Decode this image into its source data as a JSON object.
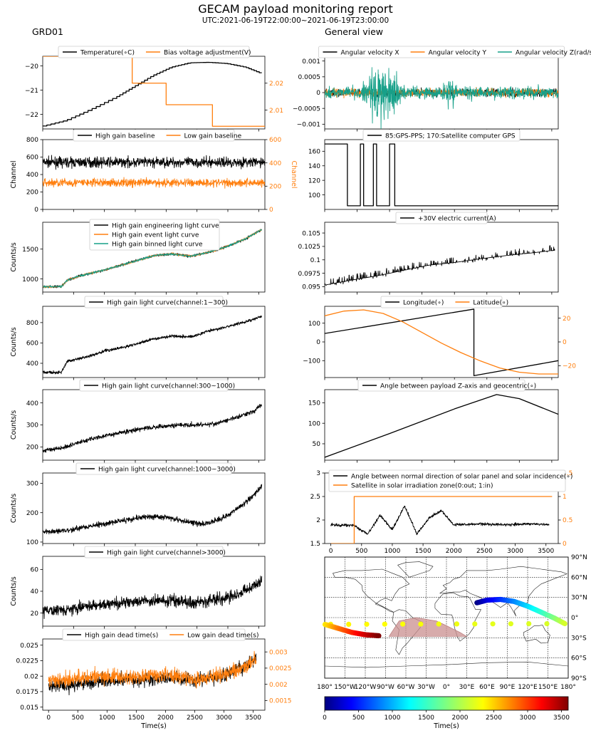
{
  "header": {
    "title": "GECAM payload monitoring report",
    "subtitle": "UTC:2021-06-19T22:00:00~2021-06-19T23:00:00",
    "left_column_title": "GRD01",
    "right_column_title": "General view"
  },
  "colors": {
    "black": "#000000",
    "orange": "#ff7f0e",
    "teal": "#17a089",
    "saa": "#c98f8f"
  },
  "chart_data": [
    {
      "id": "temp",
      "type": "line",
      "xlim": [
        0,
        3600
      ],
      "ylim": [
        -22.6,
        -19.6
      ],
      "y2lim": [
        2.003,
        2.03
      ],
      "yticks": [
        -22,
        -21,
        -20
      ],
      "y2ticks": [
        2.01,
        2.02
      ],
      "legend": "top-center",
      "series": [
        {
          "name": "Temperature(∘C)",
          "color": "#000000",
          "axis": "left",
          "style": "step",
          "x": [
            0,
            400,
            800,
            1200,
            1500,
            1800,
            2100,
            2400,
            2700,
            3000,
            3300,
            3550
          ],
          "y": [
            -22.5,
            -22.25,
            -21.8,
            -21.3,
            -20.85,
            -20.4,
            -20.05,
            -19.87,
            -19.85,
            -19.9,
            -20.05,
            -20.3
          ]
        },
        {
          "name": "Bias voltage adjustment(V)",
          "color": "#ff7f0e",
          "axis": "right",
          "style": "step",
          "x": [
            0,
            1450,
            1450,
            2000,
            2000,
            2750,
            2750,
            3600
          ],
          "y": [
            2.03,
            2.03,
            2.02,
            2.02,
            2.012,
            2.012,
            2.004,
            2.004
          ]
        }
      ]
    },
    {
      "id": "baseline",
      "type": "line",
      "xlim": [
        0,
        3600
      ],
      "ylim": [
        0,
        800
      ],
      "y2lim": [
        0,
        600
      ],
      "yticks": [
        0,
        200,
        400,
        600,
        800
      ],
      "y2ticks": [
        0,
        200,
        400,
        600
      ],
      "ylabel": "Channel",
      "y2label": "Channel",
      "legend": "top-center",
      "series": [
        {
          "name": "High gain baseline",
          "color": "#000000",
          "axis": "left",
          "noise": true,
          "x": [
            0,
            3600
          ],
          "y": [
            540,
            540
          ],
          "amp": 55
        },
        {
          "name": "Low gain baseline",
          "color": "#ff7f0e",
          "axis": "right",
          "noise": true,
          "x": [
            0,
            3600
          ],
          "y": [
            230,
            230
          ],
          "amp": 35
        }
      ]
    },
    {
      "id": "hglc",
      "type": "line",
      "xlim": [
        0,
        3600
      ],
      "ylim": [
        780,
        1950
      ],
      "yticks": [
        1000,
        1500
      ],
      "ylabel": "Counts/s",
      "legend": "top-left",
      "series": [
        {
          "name": "High gain engineering light curve",
          "color": "#000000",
          "noise": true,
          "amp": 20,
          "x": [
            0,
            300,
            400,
            600,
            1000,
            1400,
            1800,
            2100,
            2400,
            2700,
            3000,
            3300,
            3550
          ],
          "y": [
            870,
            870,
            980,
            1050,
            1150,
            1270,
            1390,
            1420,
            1380,
            1450,
            1550,
            1680,
            1830
          ]
        },
        {
          "name": "High gain event light curve",
          "color": "#ff7f0e",
          "noise": true,
          "amp": 18,
          "x": [
            0,
            300,
            400,
            600,
            1000,
            1400,
            1800,
            2100,
            2400,
            2700,
            3000,
            3300,
            3550
          ],
          "y": [
            870,
            870,
            980,
            1050,
            1150,
            1270,
            1390,
            1420,
            1380,
            1450,
            1550,
            1680,
            1830
          ]
        },
        {
          "name": "High gain binned light curve",
          "color": "#17a089",
          "noise": true,
          "amp": 16,
          "x": [
            0,
            300,
            400,
            600,
            1000,
            1400,
            1800,
            2100,
            2400,
            2700,
            3000,
            3300,
            3550
          ],
          "y": [
            870,
            870,
            980,
            1050,
            1150,
            1270,
            1390,
            1420,
            1380,
            1450,
            1550,
            1680,
            1830
          ]
        }
      ]
    },
    {
      "id": "ch1",
      "type": "line",
      "xlim": [
        0,
        3600
      ],
      "ylim": [
        260,
        960
      ],
      "yticks": [
        400,
        600,
        800
      ],
      "ylabel": "Counts/s",
      "legend": "top-center",
      "series": [
        {
          "name": "High gain light curve(channel:1~300)",
          "color": "#000000",
          "noise": true,
          "amp": 14,
          "x": [
            0,
            300,
            400,
            700,
            1000,
            1400,
            1800,
            2100,
            2400,
            2700,
            3000,
            3300,
            3550
          ],
          "y": [
            310,
            310,
            420,
            460,
            520,
            570,
            640,
            670,
            660,
            720,
            760,
            810,
            860
          ]
        }
      ]
    },
    {
      "id": "ch2",
      "type": "line",
      "xlim": [
        0,
        3600
      ],
      "ylim": [
        140,
        460
      ],
      "yticks": [
        200,
        300,
        400
      ],
      "ylabel": "Counts/s",
      "legend": "top-center",
      "series": [
        {
          "name": "High gain light curve(channel:300~1000)",
          "color": "#000000",
          "noise": true,
          "amp": 10,
          "x": [
            0,
            300,
            700,
            1000,
            1400,
            1800,
            2200,
            2500,
            2800,
            3100,
            3400,
            3550
          ],
          "y": [
            185,
            195,
            230,
            250,
            272,
            290,
            300,
            300,
            305,
            330,
            360,
            390
          ]
        }
      ]
    },
    {
      "id": "ch3",
      "type": "line",
      "xlim": [
        0,
        3600
      ],
      "ylim": [
        95,
        335
      ],
      "yticks": [
        100,
        200,
        300
      ],
      "ylabel": "Counts/s",
      "legend": "top-center",
      "series": [
        {
          "name": "High gain light curve(channel:1000~3000)",
          "color": "#000000",
          "noise": true,
          "amp": 9,
          "x": [
            0,
            400,
            800,
            1200,
            1600,
            2000,
            2300,
            2600,
            2900,
            3200,
            3450,
            3550
          ],
          "y": [
            135,
            140,
            155,
            170,
            185,
            185,
            170,
            160,
            180,
            220,
            265,
            290
          ]
        }
      ]
    },
    {
      "id": "ch4",
      "type": "line",
      "xlim": [
        0,
        3600
      ],
      "ylim": [
        8,
        72
      ],
      "yticks": [
        20,
        40,
        60
      ],
      "ylabel": "Counts/s",
      "legend": "top-center",
      "series": [
        {
          "name": "High gain light curve(channel>3000)",
          "color": "#000000",
          "noise": true,
          "amp": 5,
          "x": [
            0,
            500,
            1000,
            1500,
            2000,
            2400,
            2800,
            3200,
            3550
          ],
          "y": [
            22,
            24,
            28,
            30,
            32,
            30,
            32,
            38,
            50
          ]
        }
      ]
    },
    {
      "id": "dead",
      "type": "line",
      "xlim": [
        -100,
        3700
      ],
      "ylim": [
        0.0145,
        0.026
      ],
      "y2lim": [
        0.0012,
        0.0034
      ],
      "yticks": [
        0.015,
        0.0175,
        0.02,
        0.0225,
        0.025
      ],
      "y2ticks": [
        0.0015,
        0.002,
        0.0025,
        0.003
      ],
      "xticks": [
        0,
        500,
        1000,
        1500,
        2000,
        2500,
        3000,
        3500
      ],
      "xlabel": "Time(s)",
      "legend": "top-center",
      "series": [
        {
          "name": "High gain dead time(s)",
          "color": "#000000",
          "axis": "left",
          "noise": true,
          "amp": 0.0011,
          "x": [
            0,
            500,
            1000,
            1500,
            2000,
            2500,
            3000,
            3300,
            3550
          ],
          "y": [
            0.0182,
            0.0188,
            0.0193,
            0.0195,
            0.0197,
            0.0193,
            0.0202,
            0.0212,
            0.0228
          ]
        },
        {
          "name": "Low gain dead time(s)",
          "color": "#ff7f0e",
          "axis": "right",
          "noise": true,
          "amp": 0.00022,
          "x": [
            0,
            500,
            1000,
            1500,
            2000,
            2500,
            3000,
            3300,
            3550
          ],
          "y": [
            0.0021,
            0.0022,
            0.00225,
            0.0022,
            0.0023,
            0.00215,
            0.0023,
            0.0025,
            0.0028
          ]
        }
      ]
    },
    {
      "id": "angvel",
      "type": "line",
      "xlim": [
        0,
        3600
      ],
      "ylim": [
        -0.00115,
        0.00115
      ],
      "yticks": [
        -0.001,
        -0.0005,
        0.0,
        0.0005,
        0.001
      ],
      "legend": "top-center",
      "series": [
        {
          "name": "Angular velocity X",
          "color": "#000000",
          "noise": true,
          "x": [
            0,
            3600
          ],
          "y": [
            0,
            0
          ],
          "amp": 0.00012
        },
        {
          "name": "Angular velocity Y",
          "color": "#ff7f0e",
          "noise": true,
          "x": [
            0,
            3600
          ],
          "y": [
            0,
            0
          ],
          "amp": 0.00012
        },
        {
          "name": "Angular velocity Z(rad/s)",
          "color": "#17a089",
          "noise": true,
          "x": [
            0,
            3600
          ],
          "y": [
            0,
            0
          ],
          "amp": 0.00018,
          "bursts": [
            [
              500,
              1300,
              0.00095
            ],
            [
              1700,
              2100,
              0.0004
            ]
          ]
        }
      ]
    },
    {
      "id": "gps",
      "type": "line",
      "xlim": [
        0,
        3600
      ],
      "ylim": [
        80,
        176
      ],
      "yticks": [
        100,
        120,
        140,
        160
      ],
      "legend": "top-center",
      "series": [
        {
          "name": "85:GPS-PPS; 170:Satellite computer GPS",
          "color": "#000000",
          "x": [
            0,
            350,
            350,
            550,
            550,
            600,
            600,
            750,
            750,
            800,
            800,
            1000,
            1000,
            1080,
            1080,
            1300,
            1300,
            3600
          ],
          "y": [
            170,
            170,
            85,
            85,
            170,
            170,
            85,
            85,
            170,
            170,
            85,
            85,
            170,
            170,
            85,
            85,
            85,
            85
          ]
        }
      ]
    },
    {
      "id": "current",
      "type": "line",
      "xlim": [
        0,
        3600
      ],
      "ylim": [
        0.094,
        0.107
      ],
      "yticks": [
        0.095,
        0.0975,
        0.1,
        0.1025,
        0.105
      ],
      "legend": "top-center",
      "series": [
        {
          "name": "+30V electric current(A)",
          "color": "#000000",
          "style": "step",
          "noise": true,
          "amp": 0.0006,
          "x": [
            0,
            400,
            800,
            1200,
            1600,
            2000,
            2400,
            2800,
            3200,
            3550
          ],
          "y": [
            0.0953,
            0.0962,
            0.097,
            0.098,
            0.099,
            0.0995,
            0.1002,
            0.1008,
            0.1013,
            0.1018
          ]
        }
      ]
    },
    {
      "id": "lonlat",
      "type": "line",
      "xlim": [
        0,
        3600
      ],
      "ylim": [
        -190,
        190
      ],
      "y2lim": [
        -30,
        30
      ],
      "yticks": [
        -100,
        0,
        100
      ],
      "y2ticks": [
        -20,
        0,
        20
      ],
      "legend": "top-center",
      "series": [
        {
          "name": "Longitude(∘)",
          "color": "#000000",
          "axis": "left",
          "x": [
            0,
            2300,
            2300,
            3600
          ],
          "y": [
            45,
            175,
            -180,
            -100
          ]
        },
        {
          "name": "Latitude(∘)",
          "color": "#ff7f0e",
          "axis": "right",
          "x": [
            0,
            300,
            600,
            900,
            1200,
            1500,
            1800,
            2100,
            2400,
            2700,
            3000,
            3300,
            3600
          ],
          "y": [
            22,
            26,
            27,
            24,
            17,
            8,
            -1,
            -9,
            -16,
            -22,
            -25.5,
            -27,
            -27
          ]
        }
      ]
    },
    {
      "id": "zangle",
      "type": "line",
      "xlim": [
        0,
        3600
      ],
      "ylim": [
        10,
        182
      ],
      "yticks": [
        50,
        100,
        150
      ],
      "legend": "top-center",
      "series": [
        {
          "name": "Angle between payload Z-axis and geocentric(∘)",
          "color": "#000000",
          "x": [
            0,
            1000,
            2000,
            2650,
            3000,
            3600
          ],
          "y": [
            17,
            75,
            135,
            170,
            160,
            122
          ]
        }
      ]
    },
    {
      "id": "solar",
      "type": "line",
      "xlim": [
        -100,
        3700
      ],
      "ylim": [
        1.5,
        3.0
      ],
      "y2lim": [
        0,
        1.5
      ],
      "yticks": [
        1.5,
        2.0,
        2.5,
        3.0
      ],
      "y2ticks": [
        0.0,
        0.5,
        1.0,
        1.5
      ],
      "xticks": [
        0,
        500,
        1000,
        1500,
        2000,
        2500,
        3000,
        3500
      ],
      "legend": "top-left",
      "series": [
        {
          "name": "Angle between normal direction of solar panel and solar incidence(∘)",
          "color": "#000000",
          "noise": true,
          "amp": 0.03,
          "x": [
            0,
            380,
            600,
            800,
            1000,
            1200,
            1400,
            1600,
            1800,
            2000,
            2400,
            2800,
            3200,
            3550
          ],
          "y": [
            1.9,
            1.88,
            1.7,
            2.1,
            1.8,
            2.3,
            1.7,
            2.05,
            2.2,
            1.9,
            1.92,
            1.9,
            1.92,
            1.9
          ]
        },
        {
          "name": "Satellite in solar irradiation zone(0:out; 1:in)",
          "color": "#ff7f0e",
          "axis": "right",
          "x": [
            0,
            380,
            380,
            3600
          ],
          "y": [
            0,
            0,
            1,
            1
          ]
        }
      ]
    },
    {
      "id": "map",
      "type": "scatter",
      "xlim": [
        -180,
        180
      ],
      "ylim": [
        -90,
        90
      ],
      "xticks": [
        "180°",
        "150°W",
        "120°W",
        "90°W",
        "60°W",
        "30°W",
        "0°",
        "30°E",
        "60°E",
        "90°E",
        "120°E",
        "150°E",
        "180°"
      ],
      "yticks": [
        "90°N",
        "60°N",
        "30°N",
        "0°",
        "30°S",
        "60°S",
        "90°S"
      ],
      "track": {
        "lon": [
          45,
          60,
          80,
          100,
          120,
          140,
          160,
          175,
          -180,
          -160,
          -140,
          -120,
          -100
        ],
        "lat": [
          22,
          26,
          27,
          24,
          17,
          8,
          -1,
          -9,
          -10,
          -16,
          -22,
          -25.5,
          -27
        ],
        "time": [
          0,
          300,
          600,
          900,
          1200,
          1500,
          1800,
          2100,
          2300,
          2700,
          3000,
          3300,
          3600
        ]
      }
    },
    {
      "id": "colorbar",
      "type": "colorbar",
      "clim": [
        0,
        3600
      ],
      "ticks": [
        0,
        500,
        1000,
        1500,
        2000,
        2500,
        3000,
        3500
      ],
      "label": "Time(s)"
    }
  ]
}
